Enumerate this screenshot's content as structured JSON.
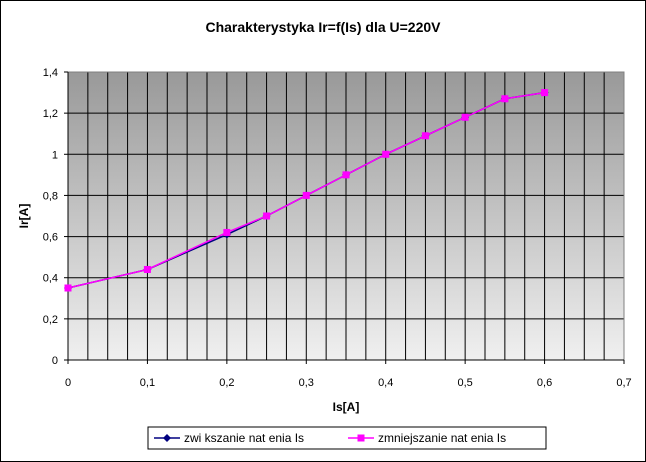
{
  "chart_data": {
    "type": "line",
    "title": "Charakterystyka Ir=f(Is) dla U=220V",
    "xlabel": "Is[A]",
    "ylabel": "Ir[A]",
    "xlim": [
      0,
      0.7
    ],
    "ylim": [
      0,
      1.4
    ],
    "x_ticks": [
      "0",
      "0,1",
      "0,2",
      "0,3",
      "0,4",
      "0,5",
      "0,6",
      "0,7"
    ],
    "y_ticks": [
      "0",
      "0,2",
      "0,4",
      "0,6",
      "0,8",
      "1",
      "1,2",
      "1,4"
    ],
    "grid": true,
    "legend_position": "bottom",
    "series": [
      {
        "name": "zwi kszanie nat enia Is",
        "color": "#000080",
        "marker": "diamond",
        "x": [
          0,
          0.1,
          0.2,
          0.25,
          0.3,
          0.35,
          0.4,
          0.45,
          0.5,
          0.55,
          0.6
        ],
        "y": [
          0.35,
          0.44,
          0.61,
          0.7,
          0.8,
          0.9,
          1.0,
          1.09,
          1.18,
          1.27,
          1.3
        ]
      },
      {
        "name": "zmniejszanie nat enia Is",
        "color": "#ff00ff",
        "marker": "square",
        "x": [
          0,
          0.1,
          0.2,
          0.25,
          0.3,
          0.35,
          0.4,
          0.45,
          0.5,
          0.55,
          0.6
        ],
        "y": [
          0.35,
          0.44,
          0.62,
          0.7,
          0.8,
          0.9,
          1.0,
          1.09,
          1.18,
          1.27,
          1.3
        ]
      }
    ]
  }
}
